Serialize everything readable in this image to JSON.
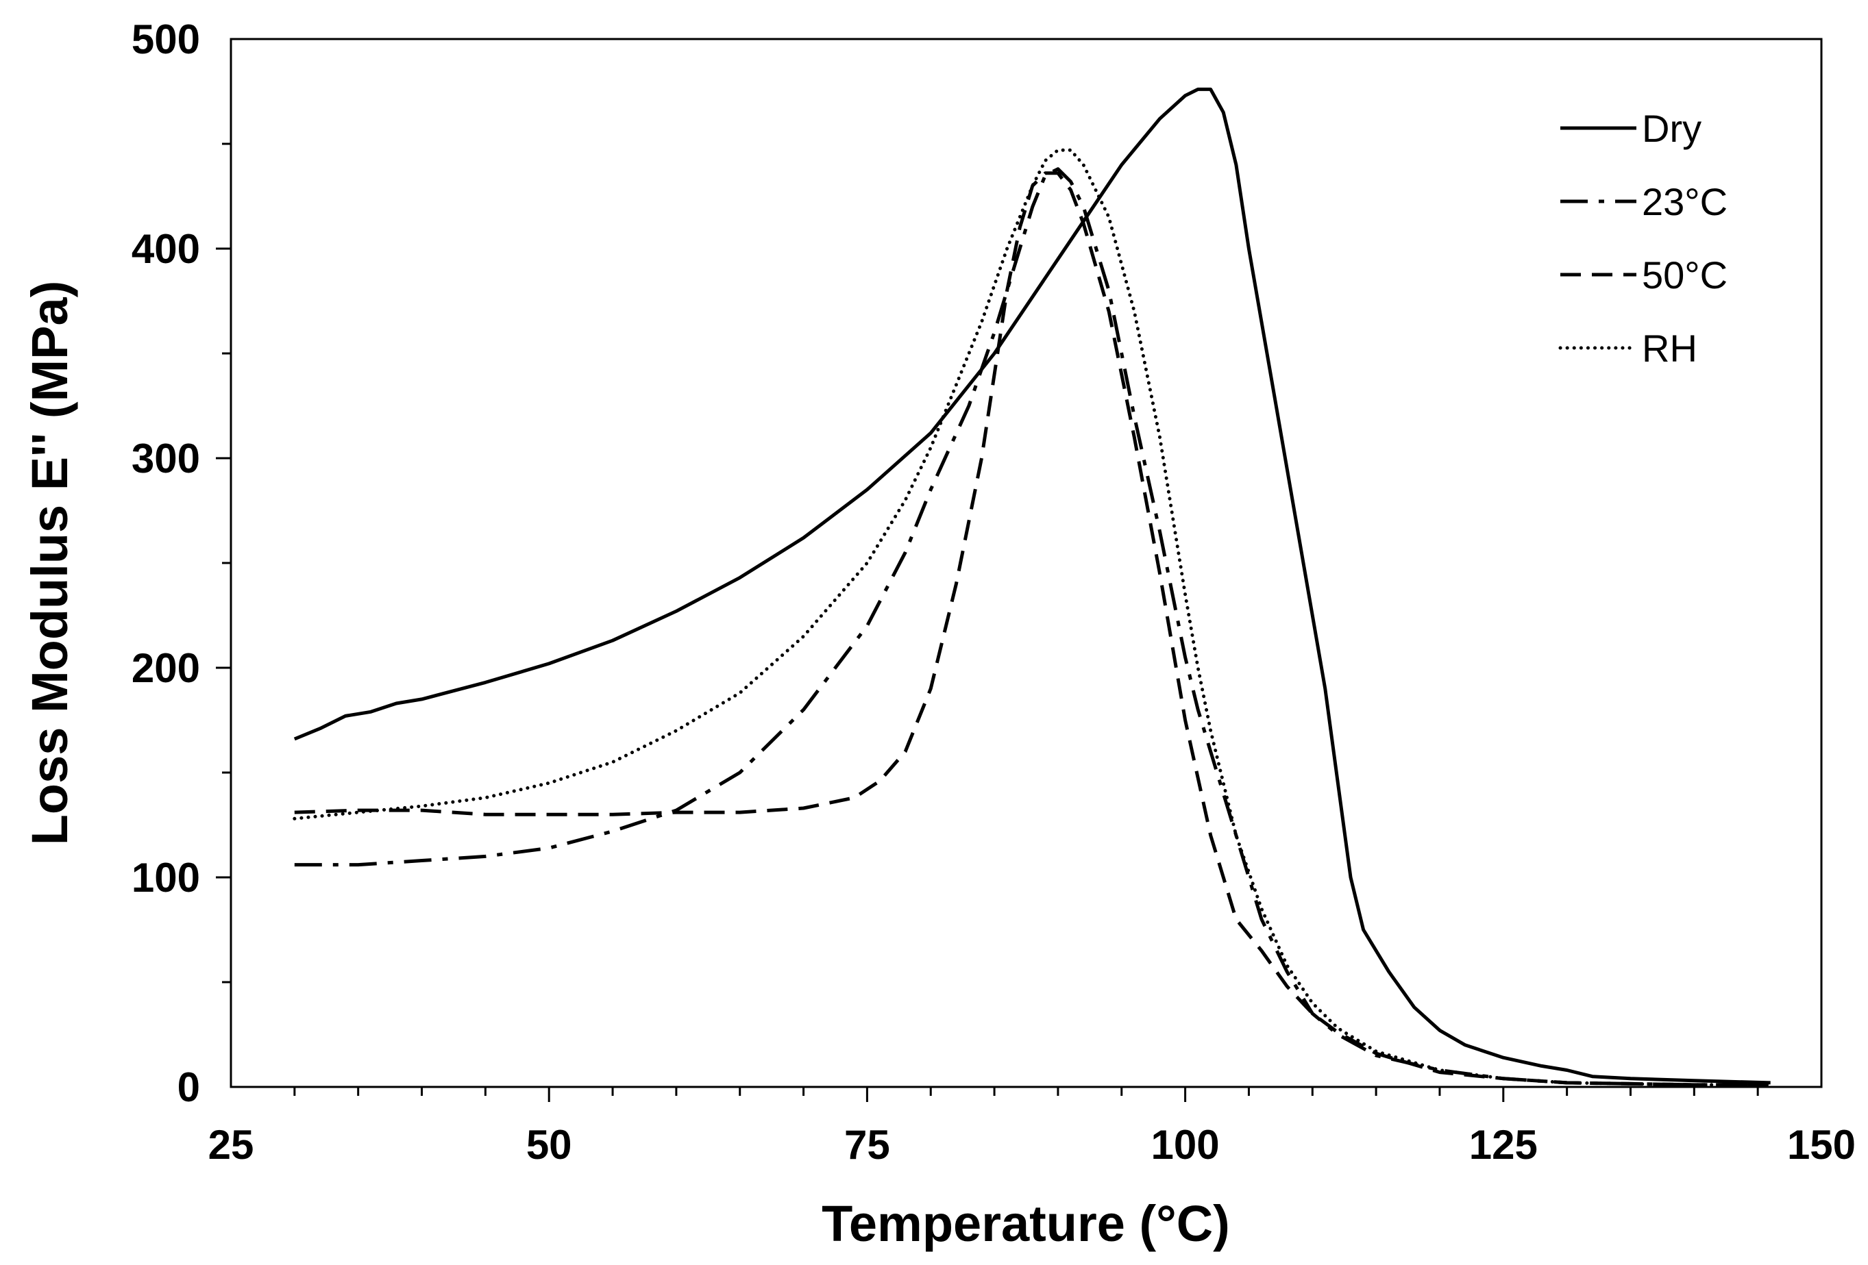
{
  "chart_data": {
    "type": "line",
    "title": "",
    "xlabel": "Temperature (°C)",
    "ylabel": "Loss Modulus E'' (MPa)",
    "xlim": [
      25,
      150
    ],
    "ylim": [
      0,
      500
    ],
    "x_major_ticks": [
      25,
      50,
      75,
      100,
      125,
      150
    ],
    "x_minor_step": 5,
    "y_major_ticks": [
      0,
      100,
      200,
      300,
      400,
      500
    ],
    "y_minor_step": 50,
    "grid": false,
    "legend_position": "top-right",
    "series": [
      {
        "name": "Dry",
        "dash": "solid",
        "points": [
          [
            30,
            166
          ],
          [
            32,
            171
          ],
          [
            34,
            177
          ],
          [
            36,
            179
          ],
          [
            38,
            183
          ],
          [
            40,
            185
          ],
          [
            45,
            193
          ],
          [
            50,
            202
          ],
          [
            55,
            213
          ],
          [
            60,
            227
          ],
          [
            65,
            243
          ],
          [
            70,
            262
          ],
          [
            75,
            285
          ],
          [
            80,
            312
          ],
          [
            85,
            350
          ],
          [
            90,
            395
          ],
          [
            95,
            440
          ],
          [
            98,
            462
          ],
          [
            100,
            473
          ],
          [
            101,
            476
          ],
          [
            102,
            476
          ],
          [
            103,
            465
          ],
          [
            104,
            440
          ],
          [
            105,
            400
          ],
          [
            107,
            330
          ],
          [
            109,
            260
          ],
          [
            111,
            190
          ],
          [
            112,
            145
          ],
          [
            113,
            100
          ],
          [
            114,
            75
          ],
          [
            116,
            55
          ],
          [
            118,
            38
          ],
          [
            120,
            27
          ],
          [
            122,
            20
          ],
          [
            125,
            14
          ],
          [
            128,
            10
          ],
          [
            130,
            8
          ],
          [
            132,
            5
          ],
          [
            135,
            4
          ],
          [
            140,
            3
          ],
          [
            146,
            2
          ]
        ]
      },
      {
        "name": "23°C",
        "dash": "dashdot",
        "points": [
          [
            30,
            106
          ],
          [
            35,
            106
          ],
          [
            40,
            108
          ],
          [
            45,
            110
          ],
          [
            50,
            114
          ],
          [
            55,
            122
          ],
          [
            60,
            132
          ],
          [
            65,
            150
          ],
          [
            70,
            180
          ],
          [
            75,
            220
          ],
          [
            78,
            255
          ],
          [
            80,
            285
          ],
          [
            83,
            325
          ],
          [
            85,
            360
          ],
          [
            87,
            400
          ],
          [
            88,
            420
          ],
          [
            89,
            435
          ],
          [
            90,
            438
          ],
          [
            91,
            432
          ],
          [
            92,
            420
          ],
          [
            94,
            380
          ],
          [
            96,
            320
          ],
          [
            98,
            265
          ],
          [
            100,
            205
          ],
          [
            101,
            180
          ],
          [
            102,
            160
          ],
          [
            104,
            120
          ],
          [
            106,
            80
          ],
          [
            108,
            55
          ],
          [
            110,
            35
          ],
          [
            112,
            25
          ],
          [
            115,
            15
          ],
          [
            120,
            8
          ],
          [
            125,
            4
          ],
          [
            130,
            2
          ],
          [
            140,
            1
          ],
          [
            146,
            1
          ]
        ]
      },
      {
        "name": "50°C",
        "dash": "dashed",
        "points": [
          [
            30,
            131
          ],
          [
            35,
            132
          ],
          [
            40,
            132
          ],
          [
            45,
            130
          ],
          [
            50,
            130
          ],
          [
            55,
            130
          ],
          [
            60,
            131
          ],
          [
            65,
            131
          ],
          [
            70,
            133
          ],
          [
            74,
            138
          ],
          [
            76,
            146
          ],
          [
            78,
            160
          ],
          [
            80,
            190
          ],
          [
            82,
            240
          ],
          [
            84,
            300
          ],
          [
            85,
            340
          ],
          [
            86,
            380
          ],
          [
            87,
            410
          ],
          [
            88,
            430
          ],
          [
            89,
            436
          ],
          [
            90,
            436
          ],
          [
            91,
            428
          ],
          [
            92,
            412
          ],
          [
            94,
            370
          ],
          [
            96,
            310
          ],
          [
            98,
            245
          ],
          [
            100,
            175
          ],
          [
            102,
            120
          ],
          [
            104,
            80
          ],
          [
            106,
            65
          ],
          [
            108,
            48
          ],
          [
            110,
            35
          ],
          [
            112,
            26
          ],
          [
            115,
            16
          ],
          [
            120,
            7
          ],
          [
            125,
            4
          ],
          [
            130,
            2
          ],
          [
            140,
            1
          ],
          [
            146,
            1
          ]
        ]
      },
      {
        "name": "RH",
        "dash": "dotted",
        "points": [
          [
            30,
            128
          ],
          [
            35,
            131
          ],
          [
            40,
            134
          ],
          [
            45,
            138
          ],
          [
            50,
            145
          ],
          [
            55,
            155
          ],
          [
            60,
            170
          ],
          [
            65,
            188
          ],
          [
            70,
            215
          ],
          [
            75,
            250
          ],
          [
            78,
            280
          ],
          [
            80,
            305
          ],
          [
            82,
            335
          ],
          [
            84,
            365
          ],
          [
            86,
            400
          ],
          [
            88,
            430
          ],
          [
            89,
            442
          ],
          [
            90,
            447
          ],
          [
            91,
            447
          ],
          [
            92,
            440
          ],
          [
            94,
            415
          ],
          [
            96,
            370
          ],
          [
            98,
            310
          ],
          [
            100,
            235
          ],
          [
            101,
            200
          ],
          [
            102,
            170
          ],
          [
            103,
            145
          ],
          [
            104,
            120
          ],
          [
            106,
            85
          ],
          [
            108,
            58
          ],
          [
            110,
            40
          ],
          [
            112,
            28
          ],
          [
            115,
            17
          ],
          [
            120,
            8
          ],
          [
            125,
            4
          ],
          [
            130,
            2
          ],
          [
            140,
            1
          ],
          [
            146,
            1
          ]
        ]
      }
    ]
  }
}
